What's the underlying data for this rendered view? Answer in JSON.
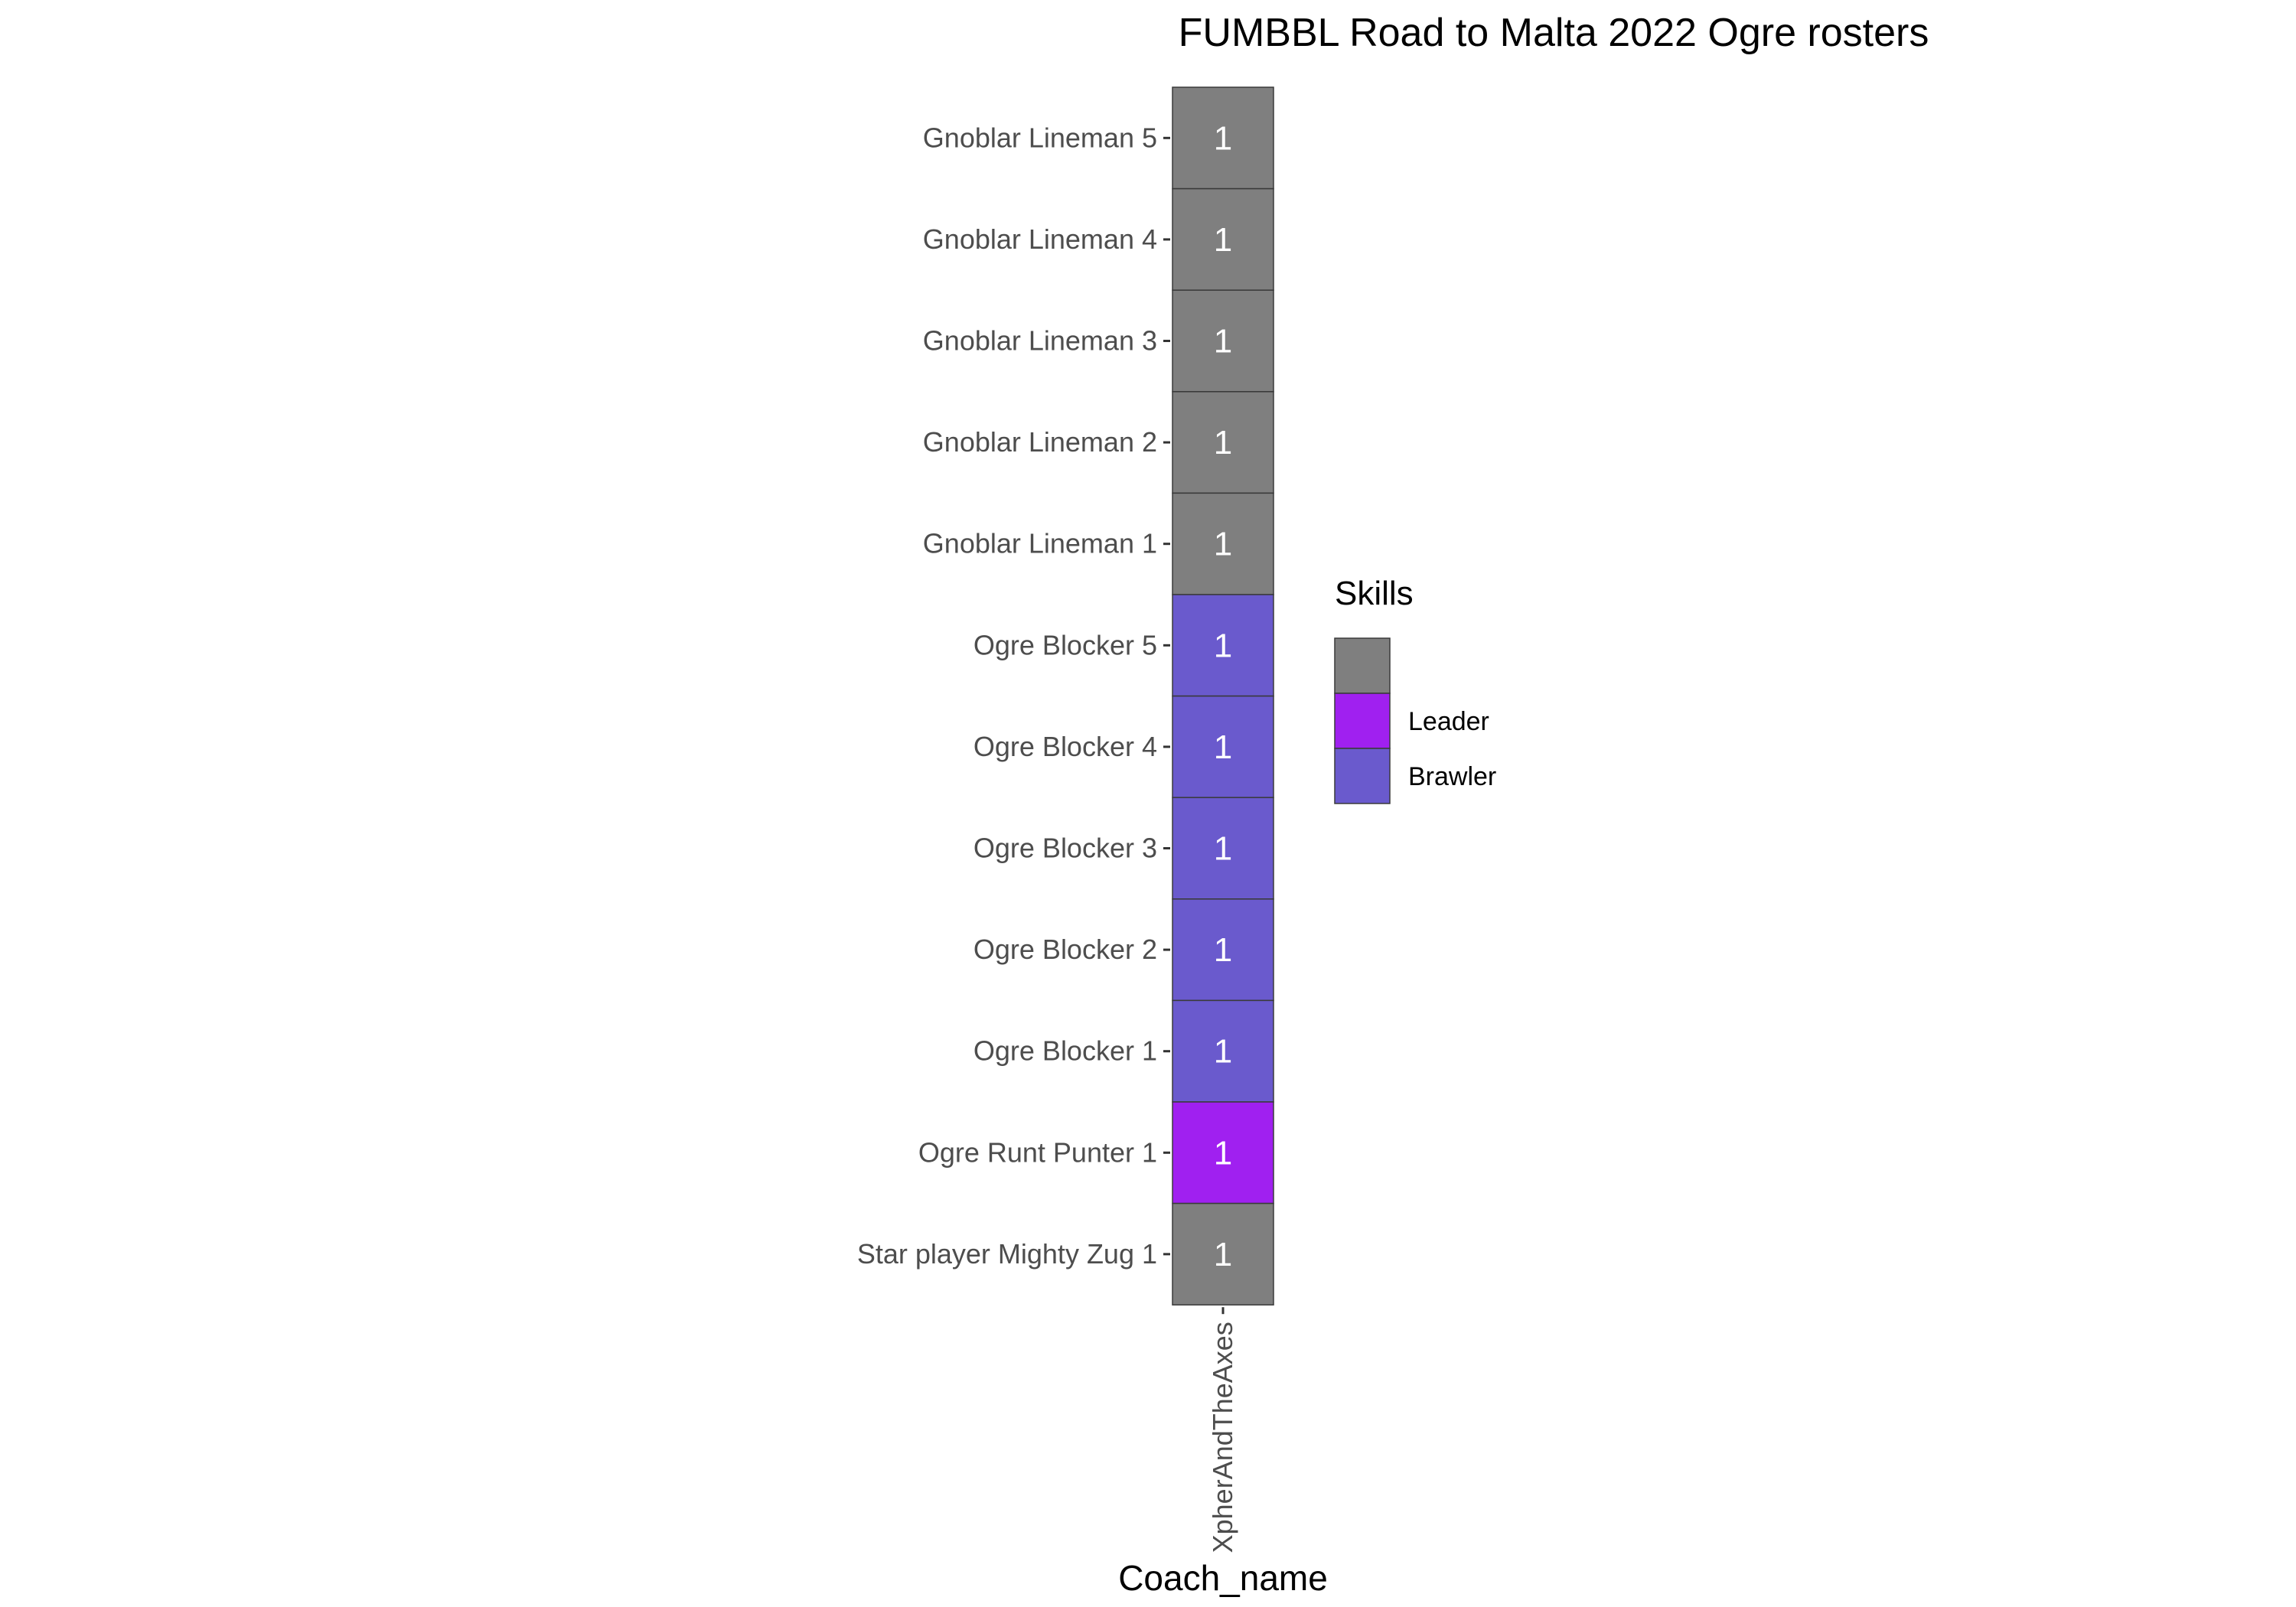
{
  "chart_data": {
    "type": "heatmap",
    "title": "FUMBBL Road to Malta 2022 Ogre rosters",
    "xlabel": "Coach_name",
    "ylabel": "",
    "x_categories": [
      "XpherAndTheAxes"
    ],
    "y_categories": [
      "Gnoblar Lineman 5",
      "Gnoblar Lineman 4",
      "Gnoblar Lineman 3",
      "Gnoblar Lineman 2",
      "Gnoblar Lineman 1",
      "Ogre Blocker 5",
      "Ogre Blocker 4",
      "Ogre Blocker 3",
      "Ogre Blocker 2",
      "Ogre Blocker 1",
      "Ogre Runt Punter 1",
      "Star player Mighty Zug 1"
    ],
    "cells": [
      {
        "x": "XpherAndTheAxes",
        "y": "Gnoblar Lineman 5",
        "value": 1,
        "skill": ""
      },
      {
        "x": "XpherAndTheAxes",
        "y": "Gnoblar Lineman 4",
        "value": 1,
        "skill": ""
      },
      {
        "x": "XpherAndTheAxes",
        "y": "Gnoblar Lineman 3",
        "value": 1,
        "skill": ""
      },
      {
        "x": "XpherAndTheAxes",
        "y": "Gnoblar Lineman 2",
        "value": 1,
        "skill": ""
      },
      {
        "x": "XpherAndTheAxes",
        "y": "Gnoblar Lineman 1",
        "value": 1,
        "skill": ""
      },
      {
        "x": "XpherAndTheAxes",
        "y": "Ogre Blocker 5",
        "value": 1,
        "skill": "Brawler"
      },
      {
        "x": "XpherAndTheAxes",
        "y": "Ogre Blocker 4",
        "value": 1,
        "skill": "Brawler"
      },
      {
        "x": "XpherAndTheAxes",
        "y": "Ogre Blocker 3",
        "value": 1,
        "skill": "Brawler"
      },
      {
        "x": "XpherAndTheAxes",
        "y": "Ogre Blocker 2",
        "value": 1,
        "skill": "Brawler"
      },
      {
        "x": "XpherAndTheAxes",
        "y": "Ogre Blocker 1",
        "value": 1,
        "skill": "Brawler"
      },
      {
        "x": "XpherAndTheAxes",
        "y": "Ogre Runt Punter 1",
        "value": 1,
        "skill": "Leader"
      },
      {
        "x": "XpherAndTheAxes",
        "y": "Star player Mighty Zug 1",
        "value": 1,
        "skill": ""
      }
    ],
    "legend": {
      "title": "Skills",
      "placement": "right",
      "entries": [
        {
          "label": "",
          "color": "#7f7f7f"
        },
        {
          "label": "Leader",
          "color": "#a020f0"
        },
        {
          "label": "Brawler",
          "color": "#6a5acd"
        }
      ]
    },
    "grid": false
  }
}
